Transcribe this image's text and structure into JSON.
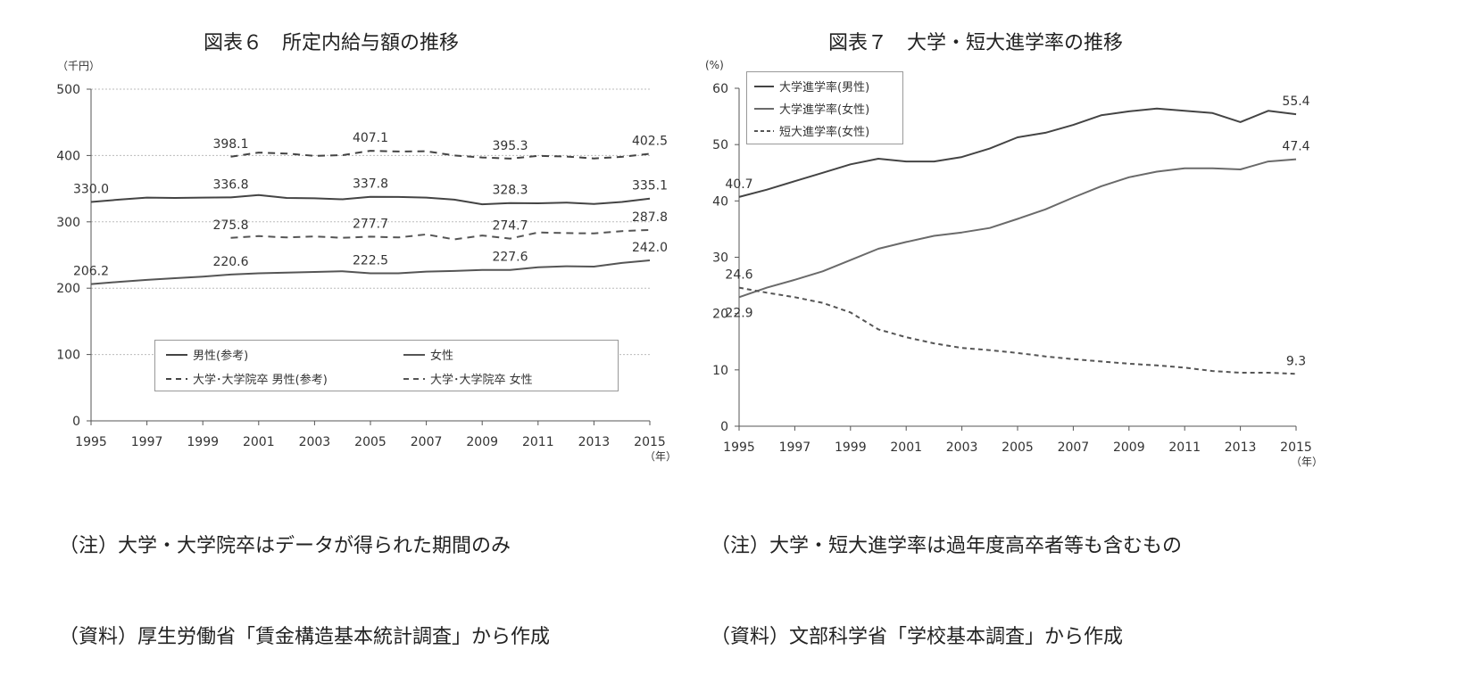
{
  "left_panel": {
    "title": "図表６　所定内給与額の推移",
    "note_1": "（注）大学・大学院卒はデータが得られた期間のみ",
    "note_2": "（資料）厚生労働省「賃金構造基本統計調査」から作成",
    "legend": [
      "男性(参考)",
      "女性",
      "大学･大学院卒 男性(参考)",
      "大学･大学院卒 女性"
    ]
  },
  "right_panel": {
    "title": "図表７　大学・短大進学率の推移",
    "note_1": "（注）大学・短大進学率は過年度高卒者等も含むもの",
    "note_2": "（資料）文部科学省「学校基本調査」から作成",
    "legend": [
      "大学進学率(男性)",
      "大学進学率(女性)",
      "短大進学率(女性)"
    ]
  },
  "chart_data": [
    {
      "type": "line",
      "title": "図表６　所定内給与額の推移",
      "yunit": "（千円）",
      "xunit": "（年）",
      "ylim": [
        0,
        500
      ],
      "yticks": [
        0,
        100,
        200,
        300,
        400,
        500
      ],
      "xlim": [
        1995,
        2015
      ],
      "xticks": [
        1995,
        1997,
        1999,
        2001,
        2003,
        2005,
        2007,
        2009,
        2011,
        2013,
        2015
      ],
      "grid": "horizontal-dotted",
      "legend_position": "bottom-center",
      "series": [
        {
          "name": "男性(参考)",
          "style": "solid",
          "color": "#444444",
          "x": [
            1995,
            1996,
            1997,
            1998,
            1999,
            2000,
            2001,
            2002,
            2003,
            2004,
            2005,
            2006,
            2007,
            2008,
            2009,
            2010,
            2011,
            2012,
            2013,
            2014,
            2015
          ],
          "y": [
            330.0,
            333.5,
            336.5,
            336.0,
            336.5,
            336.8,
            340.5,
            336.0,
            335.5,
            334.0,
            337.8,
            337.5,
            336.5,
            333.5,
            326.5,
            328.3,
            328.0,
            329.0,
            327.0,
            330.0,
            335.1
          ]
        },
        {
          "name": "女性",
          "style": "solid",
          "color": "#555555",
          "x": [
            1995,
            1996,
            1997,
            1998,
            1999,
            2000,
            2001,
            2002,
            2003,
            2004,
            2005,
            2006,
            2007,
            2008,
            2009,
            2010,
            2011,
            2012,
            2013,
            2014,
            2015
          ],
          "y": [
            206.2,
            209.5,
            212.5,
            215.0,
            217.5,
            220.6,
            222.5,
            223.5,
            224.5,
            225.5,
            222.5,
            222.5,
            225.0,
            226.0,
            227.5,
            227.6,
            231.5,
            233.0,
            232.5,
            238.0,
            242.0
          ]
        },
        {
          "name": "大学･大学院卒 男性(参考)",
          "style": "dashed",
          "color": "#444444",
          "x": [
            2000,
            2001,
            2002,
            2003,
            2004,
            2005,
            2006,
            2007,
            2008,
            2009,
            2010,
            2011,
            2012,
            2013,
            2014,
            2015
          ],
          "y": [
            398.1,
            404.5,
            403.0,
            399.5,
            400.5,
            407.1,
            406.0,
            406.5,
            400.0,
            397.0,
            395.3,
            399.5,
            398.5,
            395.5,
            398.0,
            402.5
          ]
        },
        {
          "name": "大学･大学院卒 女性",
          "style": "dashed",
          "color": "#555555",
          "x": [
            2000,
            2001,
            2002,
            2003,
            2004,
            2005,
            2006,
            2007,
            2008,
            2009,
            2010,
            2011,
            2012,
            2013,
            2014,
            2015
          ],
          "y": [
            275.8,
            278.5,
            276.5,
            278.0,
            276.0,
            277.7,
            276.5,
            281.0,
            273.5,
            279.5,
            274.7,
            284.0,
            283.0,
            282.5,
            286.0,
            287.8
          ]
        }
      ],
      "data_labels": [
        {
          "x": 1995,
          "y": 330.0,
          "text": "330.0",
          "pos": "above"
        },
        {
          "x": 2000,
          "y": 336.8,
          "text": "336.8",
          "pos": "above"
        },
        {
          "x": 2005,
          "y": 337.8,
          "text": "337.8",
          "pos": "above"
        },
        {
          "x": 2010,
          "y": 328.3,
          "text": "328.3",
          "pos": "above"
        },
        {
          "x": 2015,
          "y": 335.1,
          "text": "335.1",
          "pos": "above"
        },
        {
          "x": 2000,
          "y": 398.1,
          "text": "398.1",
          "pos": "above"
        },
        {
          "x": 2005,
          "y": 407.1,
          "text": "407.1",
          "pos": "above"
        },
        {
          "x": 2010,
          "y": 395.3,
          "text": "395.3",
          "pos": "above"
        },
        {
          "x": 2015,
          "y": 402.5,
          "text": "402.5",
          "pos": "above"
        },
        {
          "x": 2000,
          "y": 275.8,
          "text": "275.8",
          "pos": "above"
        },
        {
          "x": 2005,
          "y": 277.7,
          "text": "277.7",
          "pos": "above"
        },
        {
          "x": 2010,
          "y": 274.7,
          "text": "274.7",
          "pos": "above"
        },
        {
          "x": 2015,
          "y": 287.8,
          "text": "287.8",
          "pos": "above"
        },
        {
          "x": 1995,
          "y": 206.2,
          "text": "206.2",
          "pos": "above"
        },
        {
          "x": 2000,
          "y": 220.6,
          "text": "220.6",
          "pos": "above"
        },
        {
          "x": 2005,
          "y": 222.5,
          "text": "222.5",
          "pos": "above"
        },
        {
          "x": 2010,
          "y": 227.6,
          "text": "227.6",
          "pos": "above"
        },
        {
          "x": 2015,
          "y": 242.0,
          "text": "242.0",
          "pos": "above"
        }
      ]
    },
    {
      "type": "line",
      "title": "図表７　大学・短大進学率の推移",
      "yunit": "(%)",
      "xunit": "（年）",
      "ylim": [
        0,
        60
      ],
      "yticks": [
        0,
        10,
        20,
        30,
        40,
        50,
        60
      ],
      "xlim": [
        1995,
        2015
      ],
      "xticks": [
        1995,
        1997,
        1999,
        2001,
        2003,
        2005,
        2007,
        2009,
        2011,
        2013,
        2015
      ],
      "grid": "none",
      "legend_position": "top-left",
      "series": [
        {
          "name": "大学進学率(男性)",
          "style": "solid",
          "color": "#444444",
          "x": [
            1995,
            1996,
            1997,
            1998,
            1999,
            2000,
            2001,
            2002,
            2003,
            2004,
            2005,
            2006,
            2007,
            2008,
            2009,
            2010,
            2011,
            2012,
            2013,
            2014,
            2015
          ],
          "y": [
            40.7,
            42.0,
            43.5,
            45.0,
            46.5,
            47.5,
            47.0,
            47.0,
            47.8,
            49.3,
            51.3,
            52.1,
            53.5,
            55.2,
            55.9,
            56.4,
            56.0,
            55.6,
            54.0,
            56.0,
            55.4
          ]
        },
        {
          "name": "大学進学率(女性)",
          "style": "solid",
          "color": "#6a6a6a",
          "x": [
            1995,
            1996,
            1997,
            1998,
            1999,
            2000,
            2001,
            2002,
            2003,
            2004,
            2005,
            2006,
            2007,
            2008,
            2009,
            2010,
            2011,
            2012,
            2013,
            2014,
            2015
          ],
          "y": [
            22.9,
            24.6,
            26.0,
            27.5,
            29.5,
            31.5,
            32.7,
            33.8,
            34.4,
            35.2,
            36.8,
            38.5,
            40.6,
            42.6,
            44.2,
            45.2,
            45.8,
            45.8,
            45.6,
            47.0,
            47.4
          ]
        },
        {
          "name": "短大進学率(女性)",
          "style": "dashed",
          "color": "#555555",
          "x": [
            1995,
            1996,
            1997,
            1998,
            1999,
            2000,
            2001,
            2002,
            2003,
            2004,
            2005,
            2006,
            2007,
            2008,
            2009,
            2010,
            2011,
            2012,
            2013,
            2014,
            2015
          ],
          "y": [
            24.6,
            23.7,
            22.9,
            21.9,
            20.2,
            17.2,
            15.8,
            14.7,
            13.9,
            13.5,
            13.0,
            12.4,
            11.9,
            11.5,
            11.1,
            10.8,
            10.4,
            9.8,
            9.5,
            9.5,
            9.3
          ]
        }
      ],
      "data_labels": [
        {
          "x": 1995,
          "y": 40.7,
          "text": "40.7",
          "pos": "above"
        },
        {
          "x": 2015,
          "y": 55.4,
          "text": "55.4",
          "pos": "above"
        },
        {
          "x": 2015,
          "y": 47.4,
          "text": "47.4",
          "pos": "above"
        },
        {
          "x": 1995,
          "y": 24.6,
          "text": "24.6",
          "pos": "above"
        },
        {
          "x": 1995,
          "y": 22.9,
          "text": "22.9",
          "pos": "below"
        },
        {
          "x": 2015,
          "y": 9.3,
          "text": "9.3",
          "pos": "above"
        }
      ]
    }
  ]
}
